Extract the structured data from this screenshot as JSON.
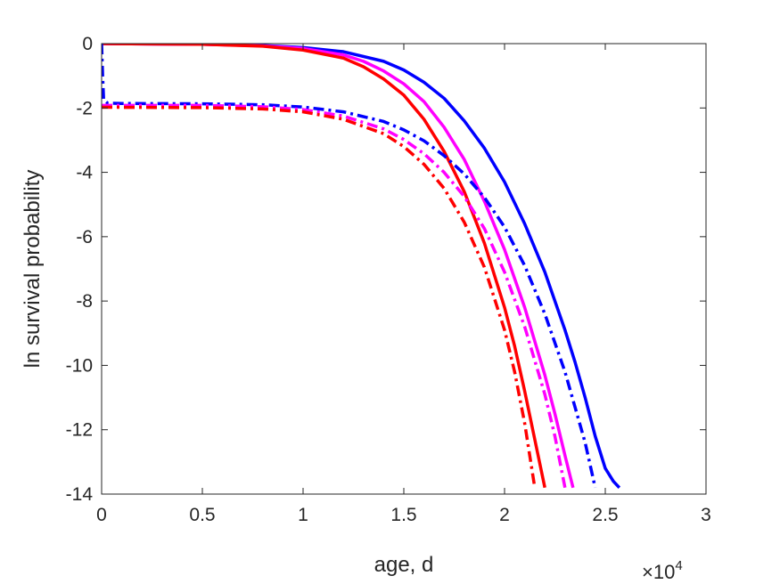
{
  "chart_data": {
    "type": "line",
    "title": "",
    "xlabel": "age, d",
    "ylabel": "ln survival probability",
    "x_exponent_label": {
      "base": "×10",
      "exponent": "4"
    },
    "xlim": [
      0,
      30000
    ],
    "ylim": [
      -14,
      0
    ],
    "x_ticks": [
      0,
      5000,
      10000,
      15000,
      20000,
      25000,
      30000
    ],
    "x_tick_labels": [
      "0",
      "0.5",
      "1",
      "1.5",
      "2",
      "2.5",
      "3"
    ],
    "y_ticks": [
      0,
      -2,
      -4,
      -6,
      -8,
      -10,
      -12,
      -14
    ],
    "y_tick_labels": [
      "0",
      "-2",
      "-4",
      "-6",
      "-8",
      "-10",
      "-12",
      "-14"
    ],
    "grid": false,
    "legend": "none",
    "series": [
      {
        "color": "#0000ff",
        "style": "solid",
        "x": [
          0,
          5000,
          8000,
          10000,
          12000,
          14000,
          15000,
          16000,
          17000,
          18000,
          19000,
          20000,
          21000,
          22000,
          23000,
          23500,
          24000,
          24500,
          25000,
          25400,
          25700
        ],
        "y": [
          0,
          -0.02,
          -0.06,
          -0.12,
          -0.25,
          -0.55,
          -0.82,
          -1.2,
          -1.7,
          -2.4,
          -3.25,
          -4.3,
          -5.6,
          -7.1,
          -8.9,
          -9.9,
          -11.0,
          -12.2,
          -13.2,
          -13.6,
          -13.8
        ]
      },
      {
        "color": "#ff00ff",
        "style": "solid",
        "x": [
          0,
          5000,
          8000,
          10000,
          12000,
          13000,
          14000,
          15000,
          16000,
          17000,
          18000,
          19000,
          20000,
          21000,
          22000,
          22500,
          23000,
          23400
        ],
        "y": [
          0,
          -0.02,
          -0.07,
          -0.15,
          -0.35,
          -0.55,
          -0.85,
          -1.25,
          -1.8,
          -2.6,
          -3.6,
          -4.9,
          -6.4,
          -8.2,
          -10.3,
          -11.5,
          -12.8,
          -13.8
        ]
      },
      {
        "color": "#ff0000",
        "style": "solid",
        "x": [
          0,
          5000,
          8000,
          10000,
          12000,
          13000,
          14000,
          15000,
          16000,
          17000,
          18000,
          19000,
          20000,
          20500,
          21000,
          21500,
          22000
        ],
        "y": [
          0,
          -0.02,
          -0.08,
          -0.2,
          -0.45,
          -0.72,
          -1.1,
          -1.6,
          -2.35,
          -3.35,
          -4.6,
          -6.2,
          -8.2,
          -9.4,
          -10.8,
          -12.3,
          -13.8
        ]
      },
      {
        "color": "#0000ff",
        "style": "dashdot",
        "x": [
          0,
          50,
          100,
          300,
          1000,
          5000,
          8000,
          10000,
          12000,
          14000,
          15000,
          16000,
          17000,
          18000,
          19000,
          20000,
          21000,
          22000,
          23000,
          24000,
          24500
        ],
        "y": [
          0,
          -1.0,
          -1.75,
          -1.85,
          -1.86,
          -1.87,
          -1.9,
          -1.97,
          -2.12,
          -2.42,
          -2.68,
          -3.02,
          -3.48,
          -4.05,
          -4.78,
          -5.7,
          -6.9,
          -8.4,
          -10.2,
          -12.4,
          -13.8
        ]
      },
      {
        "color": "#ff00ff",
        "style": "dashdot",
        "x": [
          0,
          300,
          1000,
          5000,
          8000,
          10000,
          12000,
          14000,
          15000,
          16000,
          17000,
          18000,
          19000,
          20000,
          21000,
          22000,
          22500,
          23000
        ],
        "y": [
          -1.92,
          -1.92,
          -1.92,
          -1.92,
          -1.96,
          -2.05,
          -2.25,
          -2.65,
          -2.98,
          -3.42,
          -4.0,
          -4.75,
          -5.75,
          -7.1,
          -8.8,
          -10.9,
          -12.2,
          -13.8
        ]
      },
      {
        "color": "#ff0000",
        "style": "dashdot",
        "x": [
          0,
          300,
          1000,
          5000,
          8000,
          10000,
          12000,
          14000,
          15000,
          16000,
          17000,
          18000,
          19000,
          20000,
          20500,
          21000,
          21500
        ],
        "y": [
          -1.98,
          -1.98,
          -1.98,
          -1.99,
          -2.03,
          -2.12,
          -2.35,
          -2.8,
          -3.2,
          -3.75,
          -4.5,
          -5.55,
          -6.95,
          -8.9,
          -10.2,
          -11.8,
          -13.8
        ]
      }
    ]
  }
}
